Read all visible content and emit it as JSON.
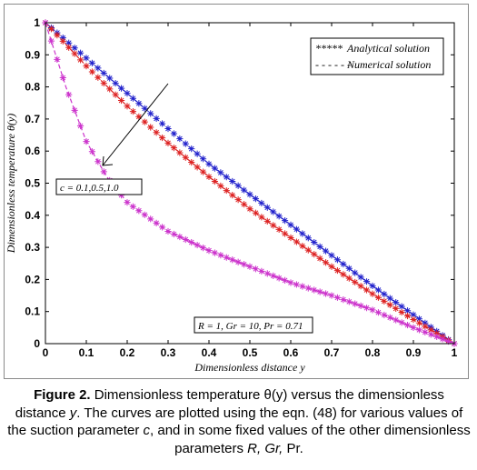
{
  "chart_data": {
    "type": "line",
    "xlabel": "Dimensionless distance  y",
    "ylabel": "Dimensionless temperature  θ(y)",
    "xlim": [
      0,
      1
    ],
    "ylim": [
      0,
      1
    ],
    "xticks": [
      "0",
      "0.1",
      "0.2",
      "0.3",
      "0.4",
      "0.5",
      "0.6",
      "0.7",
      "0.8",
      "0.9",
      "1"
    ],
    "yticks": [
      "0",
      "0.1",
      "0.2",
      "0.3",
      "0.4",
      "0.5",
      "0.6",
      "0.7",
      "0.8",
      "0.9",
      "1"
    ],
    "grid": false,
    "legend_position": "top-right",
    "legend": [
      {
        "marker": "*****",
        "label": "Analytical  solution"
      },
      {
        "marker": "- - - - - -",
        "label": "Numerical  solution"
      }
    ],
    "annotations": {
      "arrow_label": "c = 0.1,0.5,1.0",
      "params": "R = 1, Gr = 10, Pr = 0.71"
    },
    "series": [
      {
        "color": "#2222cc",
        "x": [
          0,
          0.1,
          0.2,
          0.3,
          0.4,
          0.5,
          0.6,
          0.7,
          0.8,
          0.9,
          1.0
        ],
        "y": [
          1.0,
          0.89,
          0.78,
          0.67,
          0.56,
          0.465,
          0.37,
          0.275,
          0.18,
          0.09,
          0.0
        ]
      },
      {
        "color": "#dd2222",
        "x": [
          0,
          0.1,
          0.2,
          0.3,
          0.4,
          0.5,
          0.6,
          0.7,
          0.8,
          0.9,
          1.0
        ],
        "y": [
          1.0,
          0.865,
          0.74,
          0.625,
          0.52,
          0.42,
          0.33,
          0.24,
          0.155,
          0.075,
          0.0
        ]
      },
      {
        "color": "#cc33cc",
        "x": [
          0,
          0.05,
          0.1,
          0.15,
          0.2,
          0.3,
          0.4,
          0.5,
          0.6,
          0.7,
          0.8,
          0.9,
          1.0
        ],
        "y": [
          1.0,
          0.8,
          0.63,
          0.52,
          0.44,
          0.35,
          0.29,
          0.24,
          0.19,
          0.15,
          0.105,
          0.05,
          0.0
        ]
      }
    ]
  },
  "caption": {
    "label": "Figure 2.",
    "text_1": " Dimensionless temperature θ(y) versus the dimensionless distance ",
    "var_y": "y",
    "text_2": ". The curves are plotted using the eqn. (48) for various values of the suction parameter ",
    "var_c": "c",
    "text_3": ", and in some fixed values of the other dimensionless parameters ",
    "var_params": "R, Gr,",
    "text_4": " Pr."
  }
}
